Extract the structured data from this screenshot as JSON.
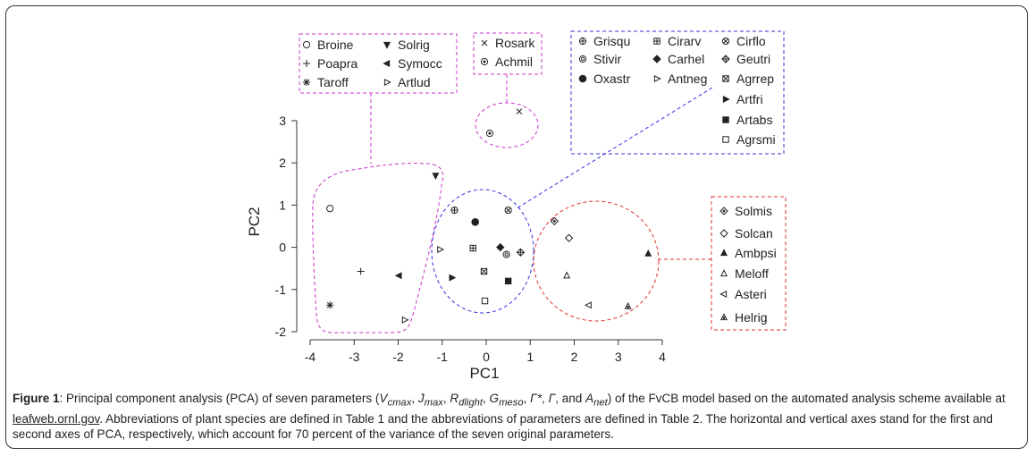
{
  "chart_data": {
    "type": "scatter",
    "xlabel": "PC1",
    "ylabel": "PC2",
    "xlim": [
      -4,
      4
    ],
    "ylim": [
      -2,
      3
    ],
    "xticks": [
      -4,
      -3,
      -2,
      -1,
      0,
      1,
      2,
      3,
      4
    ],
    "yticks": [
      -2,
      -1,
      0,
      1,
      2,
      3
    ],
    "grid": false,
    "points": [
      {
        "species": "Broine",
        "marker": "circle-open",
        "x": -3.55,
        "y": 0.92
      },
      {
        "species": "Poapra",
        "marker": "plus",
        "x": -2.85,
        "y": -0.57
      },
      {
        "species": "Taroff",
        "marker": "asterisk",
        "x": -3.55,
        "y": -1.37
      },
      {
        "species": "Solrig",
        "marker": "tri-down-filled",
        "x": -1.15,
        "y": 1.7
      },
      {
        "species": "Symocc",
        "marker": "tri-left-filled",
        "x": -1.98,
        "y": -0.67
      },
      {
        "species": "Artlud",
        "marker": "tri-right-open",
        "x": -1.85,
        "y": -1.72
      },
      {
        "species": "Rosark",
        "marker": "x",
        "x": 0.75,
        "y": 3.22
      },
      {
        "species": "Achmil",
        "marker": "circle-dot",
        "x": 0.08,
        "y": 2.7
      },
      {
        "species": "Grisqu",
        "marker": "circle-plus",
        "x": -0.72,
        "y": 0.88
      },
      {
        "species": "Stivir",
        "marker": "circle-circle",
        "x": 0.46,
        "y": -0.17
      },
      {
        "species": "Oxastr",
        "marker": "circle-filled",
        "x": -0.25,
        "y": 0.6
      },
      {
        "species": "Cirarv",
        "marker": "square-plus",
        "x": -0.3,
        "y": -0.02
      },
      {
        "species": "Carhel",
        "marker": "diamond-filled",
        "x": 0.32,
        "y": 0.0
      },
      {
        "species": "Antneg",
        "marker": "tri-right-open",
        "x": -1.05,
        "y": -0.05
      },
      {
        "species": "Cirflo",
        "marker": "circle-x",
        "x": 0.5,
        "y": 0.88
      },
      {
        "species": "Geutri",
        "marker": "diamond-plus",
        "x": 0.78,
        "y": -0.12
      },
      {
        "species": "Agrrep",
        "marker": "square-x",
        "x": -0.05,
        "y": -0.57
      },
      {
        "species": "Artfri",
        "marker": "tri-right-filled",
        "x": -0.78,
        "y": -0.72
      },
      {
        "species": "Artabs",
        "marker": "square-filled",
        "x": 0.5,
        "y": -0.8
      },
      {
        "species": "Agrsmi",
        "marker": "square-open",
        "x": -0.03,
        "y": -1.27
      },
      {
        "species": "Solmis",
        "marker": "diamond-dot",
        "x": 1.55,
        "y": 0.62
      },
      {
        "species": "Solcan",
        "marker": "diamond-open",
        "x": 1.88,
        "y": 0.22
      },
      {
        "species": "Ambpsi",
        "marker": "tri-up-filled",
        "x": 3.68,
        "y": -0.15
      },
      {
        "species": "Meloff",
        "marker": "tri-up-open",
        "x": 1.83,
        "y": -0.67
      },
      {
        "species": "Asteri",
        "marker": "tri-left-open",
        "x": 2.33,
        "y": -1.37
      },
      {
        "species": "Helrig",
        "marker": "tri-up-dot",
        "x": 3.22,
        "y": -1.4
      }
    ],
    "groups": [
      {
        "id": "group-left",
        "color": "#cc33cc",
        "legend_columns": [
          [
            "Broine",
            "Poapra",
            "Taroff"
          ],
          [
            "Solrig",
            "Symocc",
            "Artlud"
          ]
        ]
      },
      {
        "id": "group-top",
        "color": "#cc33cc",
        "legend_columns": [
          [
            "Rosark",
            "Achmil"
          ]
        ]
      },
      {
        "id": "group-center",
        "color": "#3333dd",
        "legend_columns": [
          [
            "Grisqu",
            "Stivir",
            "Oxastr"
          ],
          [
            "Cirarv",
            "Carhel",
            "Antneg"
          ],
          [
            "Cirflo",
            "Geutri",
            "Agrrep",
            "Artfri",
            "Artabs",
            "Agrsmi"
          ]
        ]
      },
      {
        "id": "group-right",
        "color": "#e03030",
        "legend_columns": [
          [
            "Solmis",
            "Solcan",
            "Ambpsi",
            "Meloff",
            "Asteri",
            "Helrig"
          ]
        ]
      }
    ]
  },
  "caption": {
    "figure_label": "Figure 1",
    "intro": ": Principal component analysis (PCA) of seven parameters (",
    "params": [
      {
        "base": "V",
        "sub": "cmax"
      },
      {
        "base": "J",
        "sub": "max"
      },
      {
        "base": "R",
        "sub": "dlight"
      },
      {
        "base": "G",
        "sub": "meso"
      },
      {
        "base": "Γ*",
        "sub": ""
      },
      {
        "base": "Γ",
        "sub": ""
      }
    ],
    "and_text": "and",
    "last_param": {
      "base": "A",
      "sub": "net"
    },
    "mid": ") of the FvCB model based on the automated analysis scheme available at ",
    "link": "leafweb.ornl.gov",
    "tail": ". Abbreviations of plant species are defined in Table 1 and the abbreviations of parameters are defined in Table 2. The horizontal and vertical axes stand for the first and second axes of PCA, respectively, which account for 70 percent of the variance of the seven original parameters."
  }
}
